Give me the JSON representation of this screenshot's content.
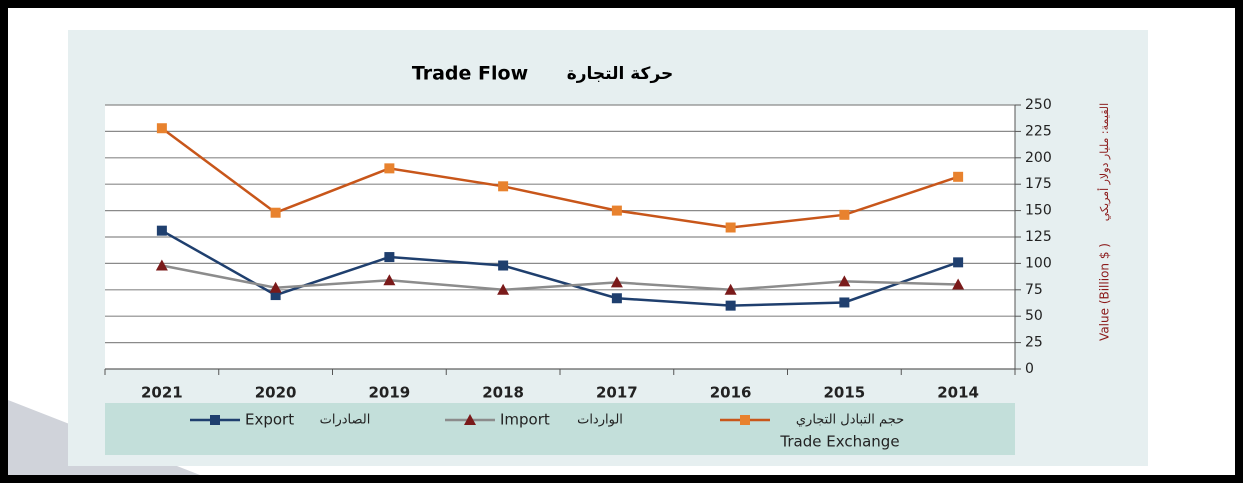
{
  "chart_data": {
    "type": "line",
    "title": "Trade Flow",
    "title_ar": "حركة التجارة",
    "ylabel": "Value (Billion $ )",
    "ylabel_ar": "القيمة: مليار دولار أمريكي",
    "categories": [
      "2021",
      "2020",
      "2019",
      "2018",
      "2017",
      "2016",
      "2015",
      "2014"
    ],
    "series": [
      {
        "name": "Export",
        "name_ar": "الصادرات",
        "color": "#1f3f6e",
        "marker_color": "#1f3f6e",
        "marker": "square",
        "values": [
          131,
          70,
          106,
          98,
          67,
          60,
          63,
          101
        ]
      },
      {
        "name": "Import",
        "name_ar": "الواردات",
        "color": "#8c8c8c",
        "marker_color": "#7a1a1a",
        "marker": "triangle",
        "values": [
          98,
          77,
          84,
          75,
          82,
          75,
          83,
          80
        ]
      },
      {
        "name": "Trade Exchange",
        "name_ar": "حجم التبادل التجاري",
        "color": "#c8561a",
        "marker_color": "#e8822e",
        "marker": "square",
        "values": [
          228,
          148,
          190,
          173,
          150,
          134,
          146,
          182
        ]
      }
    ],
    "ylim": [
      0,
      250
    ],
    "yticks": [
      0,
      25,
      50,
      75,
      100,
      125,
      150,
      175,
      200,
      225,
      250
    ],
    "yaxis_side": "right",
    "grid": true
  }
}
